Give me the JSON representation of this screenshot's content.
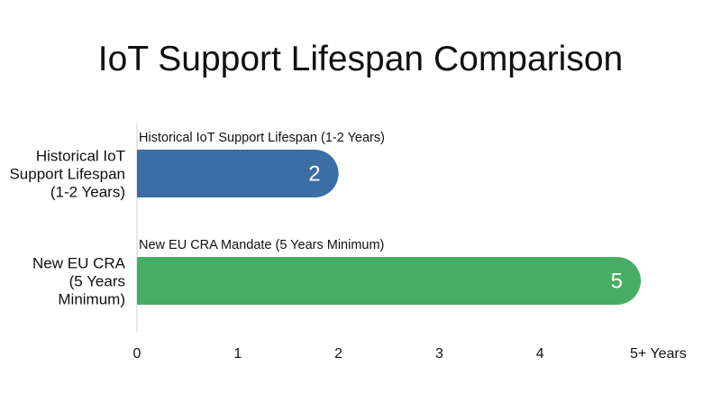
{
  "chart_data": {
    "type": "bar",
    "orientation": "horizontal",
    "title": "IoT Support Lifespan Comparison",
    "categories": [
      "Historical IoT Support Lifespan (1-2 Years)",
      "New EU CRA (5 Years Minimum)"
    ],
    "category_label_lines": [
      [
        "Historical IoT",
        "Support Lifespan",
        "(1-2 Years)"
      ],
      [
        "New EU CRA",
        "(5 Years",
        "Minimum)"
      ]
    ],
    "bar_annotations": [
      "Historical IoT Support Lifespan (1-2 Years)",
      "New EU CRA Mandate (5 Years Minimum)"
    ],
    "values": [
      2,
      5
    ],
    "value_labels": [
      "2",
      "5"
    ],
    "colors": [
      "#3a6ea5",
      "#48ad64"
    ],
    "xlim": [
      0,
      5
    ],
    "x_ticks": [
      0,
      1,
      2,
      3,
      4,
      5
    ],
    "x_tick_labels": [
      "0",
      "1",
      "2",
      "3",
      "4",
      "5+ Years"
    ],
    "xlabel": "",
    "ylabel": "",
    "grid": false,
    "legend": "none"
  }
}
